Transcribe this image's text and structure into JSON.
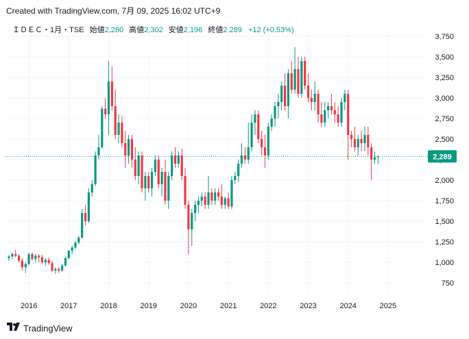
{
  "header": {
    "created_text": "Created with TradingView.com, 7月 09, 2025 16:02 UTC+9"
  },
  "legend": {
    "symbol": "ＩＤＥＣ・1月・TSE",
    "open_label": "始値",
    "open_value": "2,280",
    "high_label": "高値",
    "high_value": "2,302",
    "low_label": "安値",
    "low_value": "2,196",
    "close_label": "終値",
    "close_value": "2,289",
    "change": "+12 (+0.53%)"
  },
  "price_badge": "2,289",
  "footer": {
    "brand": "TradingView"
  },
  "colors": {
    "up": "#089981",
    "down": "#f23645",
    "grid": "#f0f3fa",
    "text": "#131722"
  },
  "chart_data": {
    "type": "candlestick",
    "interval": "1M",
    "y_ticks": [
      750,
      1000,
      1250,
      1500,
      1750,
      2000,
      2250,
      2500,
      2750,
      3000,
      3250,
      3500,
      3750
    ],
    "y_tick_labels": [
      "750",
      "1,000",
      "1,250",
      "1,500",
      "1,750",
      "2,000",
      "2,250",
      "2,500",
      "2,750",
      "3,000",
      "3,250",
      "3,500",
      "3,750"
    ],
    "x_tick_labels": [
      "2016",
      "2017",
      "2018",
      "2019",
      "2020",
      "2021",
      "2022",
      "2023",
      "2024",
      "2025"
    ],
    "ylim": [
      590,
      3840
    ],
    "last_close": 2289,
    "candles": [
      {
        "o": 1050,
        "h": 1090,
        "l": 1020,
        "c": 1070
      },
      {
        "o": 1070,
        "h": 1120,
        "l": 1040,
        "c": 1100
      },
      {
        "o": 1100,
        "h": 1150,
        "l": 1060,
        "c": 1080
      },
      {
        "o": 1080,
        "h": 1100,
        "l": 1000,
        "c": 1020
      },
      {
        "o": 1020,
        "h": 1050,
        "l": 900,
        "c": 940
      },
      {
        "o": 940,
        "h": 1000,
        "l": 870,
        "c": 980
      },
      {
        "o": 980,
        "h": 1120,
        "l": 960,
        "c": 1100
      },
      {
        "o": 1100,
        "h": 1120,
        "l": 1020,
        "c": 1040
      },
      {
        "o": 1040,
        "h": 1100,
        "l": 1000,
        "c": 1080
      },
      {
        "o": 1080,
        "h": 1100,
        "l": 1000,
        "c": 1060
      },
      {
        "o": 1060,
        "h": 1090,
        "l": 980,
        "c": 1000
      },
      {
        "o": 1000,
        "h": 1050,
        "l": 960,
        "c": 1030
      },
      {
        "o": 1030,
        "h": 1060,
        "l": 970,
        "c": 990
      },
      {
        "o": 990,
        "h": 1020,
        "l": 880,
        "c": 900
      },
      {
        "o": 900,
        "h": 940,
        "l": 860,
        "c": 920
      },
      {
        "o": 920,
        "h": 940,
        "l": 870,
        "c": 900
      },
      {
        "o": 900,
        "h": 980,
        "l": 890,
        "c": 960
      },
      {
        "o": 960,
        "h": 1070,
        "l": 950,
        "c": 1050
      },
      {
        "o": 1050,
        "h": 1150,
        "l": 1040,
        "c": 1140
      },
      {
        "o": 1140,
        "h": 1200,
        "l": 1100,
        "c": 1180
      },
      {
        "o": 1180,
        "h": 1260,
        "l": 1160,
        "c": 1240
      },
      {
        "o": 1240,
        "h": 1320,
        "l": 1220,
        "c": 1300
      },
      {
        "o": 1300,
        "h": 1650,
        "l": 1290,
        "c": 1600
      },
      {
        "o": 1600,
        "h": 1700,
        "l": 1450,
        "c": 1500
      },
      {
        "o": 1500,
        "h": 1900,
        "l": 1480,
        "c": 1850
      },
      {
        "o": 1850,
        "h": 2000,
        "l": 1800,
        "c": 1950
      },
      {
        "o": 1950,
        "h": 2350,
        "l": 1930,
        "c": 2300
      },
      {
        "o": 2300,
        "h": 2550,
        "l": 2250,
        "c": 2400
      },
      {
        "o": 2400,
        "h": 2900,
        "l": 2380,
        "c": 2870
      },
      {
        "o": 2870,
        "h": 3000,
        "l": 2750,
        "c": 2800
      },
      {
        "o": 2800,
        "h": 3450,
        "l": 2550,
        "c": 3200
      },
      {
        "o": 3200,
        "h": 3380,
        "l": 2850,
        "c": 2900
      },
      {
        "o": 2900,
        "h": 3100,
        "l": 2500,
        "c": 2550
      },
      {
        "o": 2550,
        "h": 2800,
        "l": 2450,
        "c": 2700
      },
      {
        "o": 2700,
        "h": 2780,
        "l": 2400,
        "c": 2450
      },
      {
        "o": 2450,
        "h": 2600,
        "l": 2150,
        "c": 2300
      },
      {
        "o": 2300,
        "h": 2550,
        "l": 2200,
        "c": 2500
      },
      {
        "o": 2500,
        "h": 2550,
        "l": 2150,
        "c": 2250
      },
      {
        "o": 2250,
        "h": 2400,
        "l": 2000,
        "c": 2050
      },
      {
        "o": 2050,
        "h": 2350,
        "l": 1950,
        "c": 2300
      },
      {
        "o": 2300,
        "h": 2350,
        "l": 1850,
        "c": 1900
      },
      {
        "o": 1900,
        "h": 2100,
        "l": 1750,
        "c": 2050
      },
      {
        "o": 2050,
        "h": 2100,
        "l": 1850,
        "c": 1900
      },
      {
        "o": 1900,
        "h": 2150,
        "l": 1800,
        "c": 2100
      },
      {
        "o": 2100,
        "h": 2300,
        "l": 2050,
        "c": 2250
      },
      {
        "o": 2250,
        "h": 2300,
        "l": 1900,
        "c": 1950
      },
      {
        "o": 1950,
        "h": 2150,
        "l": 1800,
        "c": 2100
      },
      {
        "o": 2100,
        "h": 2250,
        "l": 1700,
        "c": 1750
      },
      {
        "o": 1750,
        "h": 2100,
        "l": 1650,
        "c": 2050
      },
      {
        "o": 2050,
        "h": 2350,
        "l": 2000,
        "c": 2300
      },
      {
        "o": 2300,
        "h": 2400,
        "l": 2150,
        "c": 2200
      },
      {
        "o": 2200,
        "h": 2350,
        "l": 2150,
        "c": 2300
      },
      {
        "o": 2300,
        "h": 2380,
        "l": 2000,
        "c": 2050
      },
      {
        "o": 2050,
        "h": 2150,
        "l": 1650,
        "c": 1700
      },
      {
        "o": 1700,
        "h": 1750,
        "l": 1100,
        "c": 1400
      },
      {
        "o": 1400,
        "h": 1650,
        "l": 1200,
        "c": 1600
      },
      {
        "o": 1600,
        "h": 1750,
        "l": 1500,
        "c": 1700
      },
      {
        "o": 1700,
        "h": 1800,
        "l": 1600,
        "c": 1750
      },
      {
        "o": 1750,
        "h": 1850,
        "l": 1680,
        "c": 1800
      },
      {
        "o": 1800,
        "h": 1850,
        "l": 1650,
        "c": 1700
      },
      {
        "o": 1700,
        "h": 2050,
        "l": 1650,
        "c": 1850
      },
      {
        "o": 1850,
        "h": 1900,
        "l": 1700,
        "c": 1750
      },
      {
        "o": 1750,
        "h": 1900,
        "l": 1700,
        "c": 1850
      },
      {
        "o": 1850,
        "h": 1900,
        "l": 1750,
        "c": 1800
      },
      {
        "o": 1800,
        "h": 1950,
        "l": 1650,
        "c": 1700
      },
      {
        "o": 1700,
        "h": 1800,
        "l": 1650,
        "c": 1780
      },
      {
        "o": 1780,
        "h": 1850,
        "l": 1650,
        "c": 1680
      },
      {
        "o": 1680,
        "h": 2050,
        "l": 1650,
        "c": 2000
      },
      {
        "o": 2000,
        "h": 2100,
        "l": 1950,
        "c": 2050
      },
      {
        "o": 2050,
        "h": 2250,
        "l": 1980,
        "c": 2200
      },
      {
        "o": 2200,
        "h": 2450,
        "l": 2150,
        "c": 2300
      },
      {
        "o": 2300,
        "h": 2400,
        "l": 2200,
        "c": 2250
      },
      {
        "o": 2250,
        "h": 2700,
        "l": 2200,
        "c": 2400
      },
      {
        "o": 2400,
        "h": 2800,
        "l": 2350,
        "c": 2700
      },
      {
        "o": 2700,
        "h": 2850,
        "l": 2550,
        "c": 2800
      },
      {
        "o": 2800,
        "h": 2850,
        "l": 2450,
        "c": 2500
      },
      {
        "o": 2500,
        "h": 2600,
        "l": 2300,
        "c": 2400
      },
      {
        "o": 2400,
        "h": 2550,
        "l": 2150,
        "c": 2300
      },
      {
        "o": 2300,
        "h": 2700,
        "l": 2250,
        "c": 2650
      },
      {
        "o": 2650,
        "h": 2800,
        "l": 2600,
        "c": 2750
      },
      {
        "o": 2750,
        "h": 2950,
        "l": 2650,
        "c": 2900
      },
      {
        "o": 2900,
        "h": 3050,
        "l": 2750,
        "c": 2950
      },
      {
        "o": 2950,
        "h": 3200,
        "l": 2850,
        "c": 3150
      },
      {
        "o": 3150,
        "h": 3300,
        "l": 2850,
        "c": 2900
      },
      {
        "o": 2900,
        "h": 3350,
        "l": 2750,
        "c": 3300
      },
      {
        "o": 3300,
        "h": 3450,
        "l": 3050,
        "c": 3100
      },
      {
        "o": 3100,
        "h": 3620,
        "l": 3050,
        "c": 3350
      },
      {
        "o": 3350,
        "h": 3500,
        "l": 3000,
        "c": 3050
      },
      {
        "o": 3050,
        "h": 3500,
        "l": 3000,
        "c": 3450
      },
      {
        "o": 3450,
        "h": 3500,
        "l": 3100,
        "c": 3150
      },
      {
        "o": 3150,
        "h": 3300,
        "l": 2950,
        "c": 3000
      },
      {
        "o": 3000,
        "h": 3100,
        "l": 2850,
        "c": 2950
      },
      {
        "o": 2950,
        "h": 3200,
        "l": 2850,
        "c": 3050
      },
      {
        "o": 3050,
        "h": 3100,
        "l": 2700,
        "c": 2800
      },
      {
        "o": 2800,
        "h": 2950,
        "l": 2650,
        "c": 2700
      },
      {
        "o": 2700,
        "h": 2950,
        "l": 2650,
        "c": 2850
      },
      {
        "o": 2850,
        "h": 2950,
        "l": 2750,
        "c": 2900
      },
      {
        "o": 2900,
        "h": 3050,
        "l": 2800,
        "c": 2850
      },
      {
        "o": 2850,
        "h": 2950,
        "l": 2700,
        "c": 2800
      },
      {
        "o": 2800,
        "h": 2900,
        "l": 2650,
        "c": 2700
      },
      {
        "o": 2700,
        "h": 3000,
        "l": 2650,
        "c": 2950
      },
      {
        "o": 2950,
        "h": 3100,
        "l": 2850,
        "c": 3050
      },
      {
        "o": 3050,
        "h": 3100,
        "l": 2250,
        "c": 2550
      },
      {
        "o": 2550,
        "h": 2600,
        "l": 2400,
        "c": 2500
      },
      {
        "o": 2500,
        "h": 2650,
        "l": 2350,
        "c": 2400
      },
      {
        "o": 2400,
        "h": 2550,
        "l": 2300,
        "c": 2500
      },
      {
        "o": 2500,
        "h": 2600,
        "l": 2350,
        "c": 2450
      },
      {
        "o": 2450,
        "h": 2650,
        "l": 2350,
        "c": 2550
      },
      {
        "o": 2550,
        "h": 2650,
        "l": 2300,
        "c": 2400
      },
      {
        "o": 2400,
        "h": 2450,
        "l": 2000,
        "c": 2250
      },
      {
        "o": 2250,
        "h": 2350,
        "l": 2200,
        "c": 2277
      },
      {
        "o": 2280,
        "h": 2302,
        "l": 2196,
        "c": 2289
      }
    ]
  }
}
